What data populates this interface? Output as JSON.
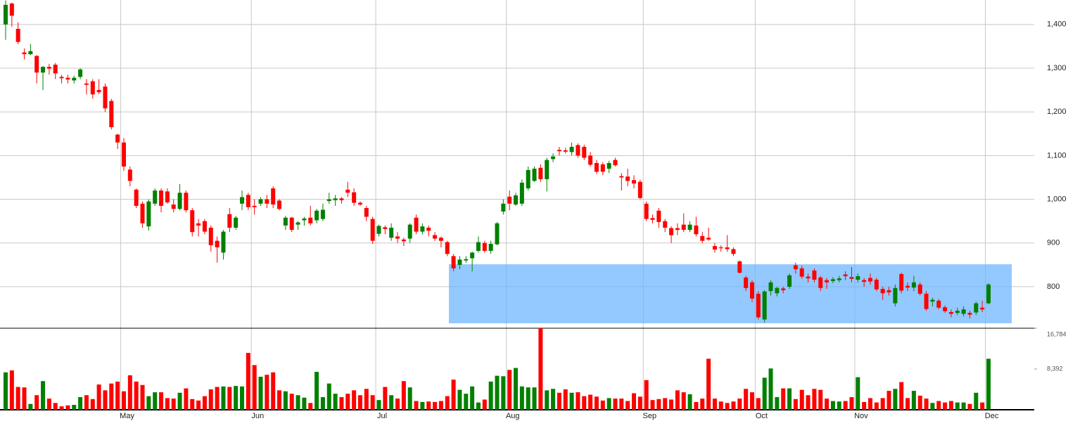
{
  "chart_data": {
    "type": "candlestick",
    "categories": [
      null,
      null,
      null,
      null,
      null,
      null,
      null,
      null,
      null,
      null,
      null,
      null,
      null,
      null,
      null,
      null,
      null,
      null,
      null,
      "May",
      null,
      null,
      null,
      null,
      null,
      null,
      null,
      null,
      null,
      null,
      null,
      null,
      null,
      null,
      null,
      null,
      null,
      null,
      null,
      null,
      "Jun",
      null,
      null,
      null,
      null,
      null,
      null,
      null,
      null,
      null,
      null,
      null,
      null,
      null,
      null,
      null,
      null,
      null,
      null,
      null,
      "Jul",
      null,
      null,
      null,
      null,
      null,
      null,
      null,
      null,
      null,
      null,
      null,
      null,
      null,
      null,
      null,
      null,
      null,
      null,
      null,
      null,
      "Aug",
      null,
      null,
      null,
      null,
      null,
      null,
      null,
      null,
      null,
      null,
      null,
      null,
      null,
      null,
      null,
      null,
      null,
      null,
      null,
      null,
      null,
      "Sep",
      null,
      null,
      null,
      null,
      null,
      null,
      null,
      null,
      null,
      null,
      null,
      null,
      null,
      null,
      null,
      null,
      null,
      "Oct",
      null,
      null,
      null,
      null,
      null,
      null,
      null,
      null,
      null,
      null,
      null,
      null,
      null,
      null,
      null,
      "Nov",
      null,
      null,
      null,
      null,
      null,
      null,
      null,
      null,
      null,
      null,
      null,
      null,
      null,
      null,
      null,
      null,
      null,
      null,
      null,
      null,
      "Dec"
    ],
    "open": [
      1400,
      1448,
      1390,
      1336,
      1332,
      1328,
      1290,
      1303,
      1308,
      1280,
      1278,
      1272,
      1280,
      1265,
      1270,
      1250,
      1258,
      1225,
      1148,
      1130,
      1068,
      1022,
      990,
      938,
      990,
      1020,
      1018,
      988,
      978,
      1015,
      975,
      945,
      950,
      935,
      905,
      878,
      966,
      935,
      990,
      1010,
      985,
      990,
      1000,
      1025,
      997,
      940,
      958,
      942,
      952,
      958,
      952,
      955,
      996,
      998,
      1002,
      1022,
      1016,
      992,
      980,
      955,
      921,
      936,
      912,
      915,
      908,
      910,
      958,
      926,
      935,
      918,
      912,
      902,
      870,
      850,
      860,
      865,
      882,
      900,
      882,
      897,
      972,
      1006,
      988,
      990,
      1025,
      1042,
      1072,
      1046,
      1092,
      1113,
      1112,
      1108,
      1124,
      1120,
      1100,
      1083,
      1080,
      1070,
      1090,
      1053,
      1052,
      1044,
      1040,
      990,
      957,
      974,
      950,
      934,
      934,
      942,
      930,
      940,
      916,
      912,
      893,
      890,
      890,
      886,
      858,
      821,
      810,
      784,
      725,
      790,
      785,
      796,
      800,
      849,
      842,
      823,
      837,
      821,
      815,
      813,
      815,
      828,
      822,
      816,
      815,
      820,
      816,
      795,
      792,
      762,
      829,
      802,
      798,
      805,
      784,
      766,
      768,
      753,
      742,
      740,
      738,
      740,
      741,
      752,
      762
    ],
    "high": [
      1455,
      1450,
      1405,
      1345,
      1355,
      1330,
      1305,
      1310,
      1312,
      1285,
      1285,
      1283,
      1300,
      1275,
      1275,
      1275,
      1265,
      1230,
      1150,
      1140,
      1075,
      1025,
      995,
      1000,
      1025,
      1025,
      1025,
      1000,
      1035,
      1020,
      980,
      955,
      955,
      940,
      915,
      930,
      980,
      962,
      1020,
      1015,
      1000,
      1005,
      1010,
      1030,
      1000,
      962,
      960,
      950,
      960,
      985,
      978,
      990,
      1015,
      1010,
      1005,
      1040,
      1025,
      995,
      985,
      960,
      942,
      940,
      945,
      925,
      912,
      945,
      965,
      945,
      940,
      925,
      915,
      905,
      875,
      870,
      870,
      880,
      915,
      905,
      905,
      948,
      1000,
      1020,
      1015,
      1045,
      1075,
      1075,
      1080,
      1095,
      1105,
      1120,
      1118,
      1130,
      1128,
      1125,
      1108,
      1090,
      1085,
      1088,
      1095,
      1060,
      1070,
      1055,
      1045,
      995,
      965,
      980,
      955,
      938,
      945,
      968,
      950,
      960,
      925,
      935,
      900,
      895,
      918,
      890,
      860,
      825,
      815,
      790,
      792,
      815,
      800,
      800,
      830,
      855,
      848,
      830,
      842,
      825,
      820,
      822,
      825,
      835,
      845,
      830,
      820,
      830,
      820,
      800,
      800,
      805,
      832,
      810,
      825,
      810,
      790,
      775,
      772,
      757,
      748,
      752,
      755,
      745,
      766,
      768,
      808
    ],
    "low": [
      1365,
      1395,
      1355,
      1320,
      1330,
      1265,
      1250,
      1285,
      1275,
      1265,
      1265,
      1265,
      1275,
      1240,
      1230,
      1240,
      1200,
      1160,
      1115,
      1065,
      1030,
      980,
      935,
      928,
      985,
      970,
      990,
      970,
      975,
      970,
      915,
      915,
      920,
      880,
      855,
      862,
      925,
      930,
      975,
      975,
      965,
      985,
      980,
      980,
      975,
      930,
      925,
      930,
      940,
      940,
      945,
      950,
      990,
      985,
      990,
      1005,
      985,
      985,
      950,
      898,
      915,
      920,
      905,
      900,
      893,
      900,
      920,
      920,
      915,
      905,
      890,
      870,
      835,
      840,
      855,
      835,
      878,
      878,
      875,
      895,
      965,
      975,
      985,
      985,
      1020,
      1040,
      1040,
      1018,
      1085,
      1100,
      1105,
      1100,
      1095,
      1090,
      1075,
      1058,
      1055,
      1060,
      1075,
      1020,
      1030,
      1025,
      1000,
      950,
      945,
      935,
      925,
      900,
      918,
      925,
      925,
      915,
      900,
      905,
      878,
      880,
      880,
      870,
      830,
      790,
      765,
      725,
      718,
      780,
      778,
      785,
      795,
      830,
      818,
      810,
      810,
      790,
      795,
      808,
      810,
      815,
      810,
      810,
      800,
      805,
      790,
      770,
      780,
      755,
      785,
      790,
      790,
      780,
      745,
      755,
      748,
      740,
      730,
      735,
      732,
      728,
      735,
      742,
      760
    ],
    "close": [
      1445,
      1420,
      1360,
      1332,
      1339,
      1290,
      1303,
      1299,
      1288,
      1277,
      1274,
      1278,
      1297,
      1262,
      1240,
      1245,
      1208,
      1165,
      1130,
      1075,
      1042,
      985,
      945,
      995,
      1020,
      985,
      993,
      978,
      1015,
      975,
      925,
      940,
      926,
      895,
      890,
      926,
      935,
      958,
      1005,
      982,
      982,
      1000,
      990,
      988,
      978,
      958,
      930,
      947,
      956,
      945,
      974,
      976,
      1000,
      1002,
      998,
      1015,
      992,
      988,
      960,
      905,
      939,
      932,
      935,
      910,
      904,
      942,
      926,
      938,
      928,
      910,
      905,
      875,
      842,
      862,
      863,
      878,
      902,
      882,
      898,
      945,
      990,
      990,
      1009,
      1038,
      1067,
      1070,
      1046,
      1090,
      1098,
      1110,
      1109,
      1120,
      1100,
      1095,
      1079,
      1063,
      1063,
      1083,
      1078,
      1050,
      1042,
      1036,
      1003,
      955,
      953,
      948,
      935,
      918,
      930,
      930,
      942,
      920,
      905,
      908,
      885,
      888,
      886,
      875,
      832,
      797,
      773,
      730,
      789,
      810,
      797,
      792,
      826,
      840,
      823,
      819,
      816,
      797,
      810,
      817,
      819,
      824,
      818,
      824,
      811,
      812,
      794,
      785,
      787,
      797,
      791,
      798,
      810,
      784,
      749,
      770,
      752,
      744,
      738,
      745,
      748,
      736,
      762,
      748,
      805
    ],
    "volume": [
      7700,
      8100,
      4700,
      4600,
      1200,
      3000,
      5900,
      2300,
      1400,
      700,
      900,
      1000,
      2600,
      3000,
      2200,
      5200,
      4000,
      5400,
      5800,
      3800,
      7100,
      5800,
      5100,
      2800,
      3600,
      3600,
      2400,
      2300,
      3500,
      4400,
      2200,
      1900,
      2800,
      4200,
      4700,
      4800,
      4700,
      4900,
      4800,
      11700,
      9200,
      6800,
      7200,
      7700,
      4000,
      3800,
      3300,
      3000,
      2500,
      1400,
      7800,
      2600,
      5400,
      3300,
      2600,
      3300,
      4000,
      3000,
      4300,
      3000,
      2000,
      4700,
      3000,
      2300,
      5900,
      4600,
      1800,
      1600,
      1700,
      1600,
      1800,
      2800,
      6200,
      4100,
      3300,
      4800,
      1500,
      2100,
      5800,
      7000,
      6900,
      8200,
      8600,
      4800,
      4600,
      4600,
      16784,
      4000,
      4300,
      3500,
      4200,
      3500,
      3600,
      2800,
      3100,
      2700,
      1900,
      2400,
      2300,
      2300,
      1800,
      3400,
      2700,
      6100,
      2000,
      2200,
      2400,
      2100,
      4000,
      3600,
      3200,
      1600,
      2300,
      10500,
      2300,
      1700,
      1400,
      1700,
      2300,
      4300,
      3600,
      2400,
      6600,
      8500,
      2600,
      4400,
      4400,
      2200,
      4100,
      3000,
      4300,
      4100,
      2300,
      1800,
      1700,
      1800,
      2600,
      6700,
      1600,
      2400,
      1500,
      2400,
      3900,
      4300,
      5700,
      2400,
      3900,
      2900,
      2300,
      1400,
      1800,
      1500,
      1800,
      1500,
      1500,
      1200,
      3500,
      1500,
      10500
    ],
    "up_color": "#008000",
    "down_color": "#ff0000",
    "ylim": [
      705,
      1456
    ],
    "yticks": [
      800,
      900,
      {
        "value": 1000,
        "label": "1,000"
      },
      {
        "value": 1100,
        "label": "1,100"
      },
      {
        "value": 1200,
        "label": "1,200"
      },
      {
        "value": 1300,
        "label": "1,300"
      },
      {
        "value": 1400,
        "label": "1,400"
      }
    ],
    "volume_ylim": [
      0,
      16784
    ],
    "volume_yticks": [
      {
        "value": 8392,
        "label": "8,392"
      },
      {
        "value": 16784,
        "label": "16,784"
      }
    ],
    "grid": true
  }
}
